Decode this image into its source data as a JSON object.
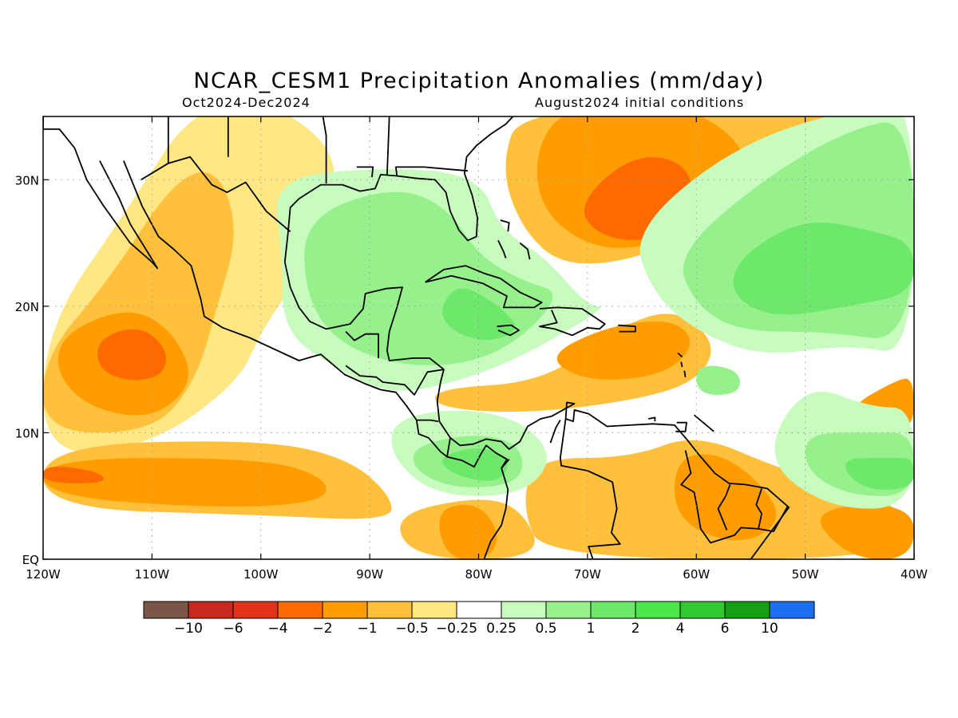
{
  "figure": {
    "title": "NCAR_CESM1 Precipitation Anomalies (mm/day)",
    "period": "Oct2024-Dec2024",
    "initial_conditions": "August2024 initial conditions"
  },
  "map": {
    "lon_range": [
      -120,
      -40
    ],
    "lat_range": [
      0,
      35
    ],
    "lon_ticks": [
      {
        "v": -120,
        "label": "120W"
      },
      {
        "v": -110,
        "label": "110W"
      },
      {
        "v": -100,
        "label": "100W"
      },
      {
        "v": -90,
        "label": "90W"
      },
      {
        "v": -80,
        "label": "80W"
      },
      {
        "v": -70,
        "label": "70W"
      },
      {
        "v": -60,
        "label": "60W"
      },
      {
        "v": -50,
        "label": "50W"
      },
      {
        "v": -40,
        "label": "40W"
      }
    ],
    "lat_ticks": [
      {
        "v": 0,
        "label": "EQ"
      },
      {
        "v": 10,
        "label": "10N"
      },
      {
        "v": 20,
        "label": "20N"
      },
      {
        "v": 30,
        "label": "30N"
      }
    ],
    "gridlines": "dotted"
  },
  "colorbar": {
    "colors": [
      "#7a5548",
      "#c8281e",
      "#e0331a",
      "#ff6a00",
      "#ff9d00",
      "#ffc03c",
      "#ffe784",
      "#ffffff",
      "#c8fcbe",
      "#96f08c",
      "#6ee86a",
      "#4ce64a",
      "#32c832",
      "#14a014",
      "#1e6ef0"
    ],
    "labels": [
      "-10",
      "-6",
      "-4",
      "-2",
      "-1",
      "-0.5",
      "-0.25",
      "0.25",
      "0.5",
      "1",
      "2",
      "4",
      "6",
      "10"
    ]
  },
  "anomaly_regions": [
    {
      "level": -0.25,
      "pts": [
        [
          -120,
          18
        ],
        [
          -112,
          28
        ],
        [
          -106,
          36
        ],
        [
          -98,
          36
        ],
        [
          -92,
          31
        ],
        [
          -96,
          23
        ],
        [
          -100,
          18
        ],
        [
          -102,
          14
        ],
        [
          -110,
          9
        ],
        [
          -120,
          8
        ]
      ]
    },
    {
      "level": -0.5,
      "pts": [
        [
          -120,
          16
        ],
        [
          -114,
          22
        ],
        [
          -108,
          30
        ],
        [
          -104,
          31
        ],
        [
          -102,
          26
        ],
        [
          -104,
          20
        ],
        [
          -106,
          14
        ],
        [
          -110,
          10
        ],
        [
          -120,
          10
        ]
      ]
    },
    {
      "level": -1,
      "pts": [
        [
          -118,
          18
        ],
        [
          -112,
          20
        ],
        [
          -108,
          18
        ],
        [
          -106,
          14
        ],
        [
          -110,
          11
        ],
        [
          -116,
          12
        ],
        [
          -119,
          15
        ]
      ]
    },
    {
      "level": -2,
      "pts": [
        [
          -115,
          17.5
        ],
        [
          -111,
          18.5
        ],
        [
          -108.5,
          16.5
        ],
        [
          -109,
          14.5
        ],
        [
          -112,
          14
        ],
        [
          -115,
          15
        ]
      ]
    },
    {
      "level": -0.5,
      "pts": [
        [
          -120,
          9
        ],
        [
          -100,
          9.5
        ],
        [
          -92,
          8
        ],
        [
          -88,
          5
        ],
        [
          -88,
          3
        ],
        [
          -100,
          3.5
        ],
        [
          -120,
          4
        ]
      ]
    },
    {
      "level": -1,
      "pts": [
        [
          -120,
          8
        ],
        [
          -100,
          8
        ],
        [
          -94,
          6.5
        ],
        [
          -94,
          4.5
        ],
        [
          -104,
          4
        ],
        [
          -120,
          5
        ]
      ]
    },
    {
      "level": -2,
      "pts": [
        [
          -120,
          7.5
        ],
        [
          -115,
          7
        ],
        [
          -114,
          6
        ],
        [
          -120,
          6
        ]
      ]
    },
    {
      "level": -0.5,
      "pts": [
        [
          -88,
          3.5
        ],
        [
          -80,
          5
        ],
        [
          -76,
          4
        ],
        [
          -74,
          0
        ],
        [
          -86,
          0
        ]
      ]
    },
    {
      "level": -1,
      "pts": [
        [
          -84,
          4
        ],
        [
          -80,
          4.5
        ],
        [
          -78,
          2
        ],
        [
          -79,
          0
        ],
        [
          -83,
          0
        ]
      ]
    },
    {
      "level": -0.5,
      "pts": [
        [
          -78,
          31
        ],
        [
          -76,
          36
        ],
        [
          -42,
          36
        ],
        [
          -48,
          32
        ],
        [
          -56,
          28
        ],
        [
          -64,
          24
        ],
        [
          -72,
          23
        ],
        [
          -76,
          26
        ]
      ]
    },
    {
      "level": -1,
      "pts": [
        [
          -75,
          32
        ],
        [
          -72,
          36
        ],
        [
          -60,
          36
        ],
        [
          -54,
          31
        ],
        [
          -60,
          26
        ],
        [
          -68,
          24
        ],
        [
          -74,
          27
        ]
      ]
    },
    {
      "level": -2,
      "pts": [
        [
          -71,
          28
        ],
        [
          -66,
          32
        ],
        [
          -61,
          31.5
        ],
        [
          -60,
          28
        ],
        [
          -64,
          25
        ],
        [
          -69,
          25.5
        ]
      ]
    },
    {
      "level": -0.5,
      "pts": [
        [
          -84,
          13.5
        ],
        [
          -74,
          14
        ],
        [
          -68,
          18
        ],
        [
          -62,
          20
        ],
        [
          -58,
          17
        ],
        [
          -60,
          14
        ],
        [
          -66,
          12.5
        ],
        [
          -76,
          11.5
        ],
        [
          -84,
          12
        ]
      ]
    },
    {
      "level": -1,
      "pts": [
        [
          -74,
          16
        ],
        [
          -68,
          18.5
        ],
        [
          -62,
          19
        ],
        [
          -60,
          17
        ],
        [
          -63,
          14.5
        ],
        [
          -70,
          14
        ]
      ]
    },
    {
      "level": -0.5,
      "pts": [
        [
          -75,
          8
        ],
        [
          -66,
          8
        ],
        [
          -60,
          10
        ],
        [
          -52,
          7
        ],
        [
          -40,
          4
        ],
        [
          -40,
          0
        ],
        [
          -74,
          0
        ],
        [
          -76,
          4
        ]
      ]
    },
    {
      "level": -1,
      "pts": [
        [
          -62,
          8
        ],
        [
          -58,
          8.5
        ],
        [
          -54,
          6
        ],
        [
          -52,
          3
        ],
        [
          -56,
          1
        ],
        [
          -62,
          3
        ]
      ]
    },
    {
      "level": -1,
      "pts": [
        [
          -50,
          4
        ],
        [
          -40,
          4.5
        ],
        [
          -40,
          0
        ],
        [
          -46,
          0
        ]
      ]
    },
    {
      "level": -1,
      "pts": [
        [
          -46,
          12
        ],
        [
          -42,
          14
        ],
        [
          -40,
          14.5
        ],
        [
          -40,
          10
        ],
        [
          -44,
          10.5
        ]
      ]
    },
    {
      "level": 0.25,
      "pts": [
        [
          -99,
          30
        ],
        [
          -90,
          31
        ],
        [
          -80,
          30.5
        ],
        [
          -78,
          26
        ],
        [
          -74,
          24
        ],
        [
          -70,
          20
        ],
        [
          -68,
          20
        ],
        [
          -76,
          16
        ],
        [
          -82,
          14
        ],
        [
          -88,
          13
        ],
        [
          -93,
          15
        ],
        [
          -98,
          18
        ],
        [
          -98,
          24
        ]
      ]
    },
    {
      "level": 0.5,
      "pts": [
        [
          -96,
          27
        ],
        [
          -88,
          29.5
        ],
        [
          -83,
          28
        ],
        [
          -80,
          24
        ],
        [
          -76,
          22
        ],
        [
          -72,
          21
        ],
        [
          -78,
          16
        ],
        [
          -86,
          15
        ],
        [
          -93,
          17
        ],
        [
          -96,
          21
        ]
      ]
    },
    {
      "level": 1,
      "pts": [
        [
          -82,
          22
        ],
        [
          -78,
          20
        ],
        [
          -76,
          18
        ],
        [
          -80,
          17
        ],
        [
          -84,
          19
        ]
      ]
    },
    {
      "level": 0.25,
      "pts": [
        [
          -88,
          11
        ],
        [
          -82,
          12
        ],
        [
          -76,
          11
        ],
        [
          -73,
          8
        ],
        [
          -76,
          5
        ],
        [
          -84,
          5
        ],
        [
          -88,
          8
        ]
      ]
    },
    {
      "level": 0.5,
      "pts": [
        [
          -86,
          9
        ],
        [
          -80,
          10
        ],
        [
          -76,
          9
        ],
        [
          -76,
          6
        ],
        [
          -82,
          5.5
        ],
        [
          -86,
          7
        ]
      ]
    },
    {
      "level": 1,
      "pts": [
        [
          -84,
          8
        ],
        [
          -80,
          9
        ],
        [
          -77,
          8
        ],
        [
          -78,
          6
        ],
        [
          -82,
          6.5
        ]
      ]
    },
    {
      "level": 0.25,
      "pts": [
        [
          -66,
          26
        ],
        [
          -56,
          33
        ],
        [
          -44,
          36
        ],
        [
          -40,
          36
        ],
        [
          -40,
          16
        ],
        [
          -46,
          17
        ],
        [
          -54,
          16
        ],
        [
          -60,
          18
        ],
        [
          -64,
          21
        ]
      ]
    },
    {
      "level": 0.5,
      "pts": [
        [
          -62,
          24
        ],
        [
          -54,
          30
        ],
        [
          -46,
          34
        ],
        [
          -40,
          35
        ],
        [
          -40,
          17
        ],
        [
          -48,
          18
        ],
        [
          -56,
          18
        ],
        [
          -60,
          20
        ]
      ]
    },
    {
      "level": 1,
      "pts": [
        [
          -56,
          24
        ],
        [
          -50,
          27
        ],
        [
          -44,
          26
        ],
        [
          -40,
          25
        ],
        [
          -40,
          21
        ],
        [
          -46,
          20
        ],
        [
          -53,
          19
        ],
        [
          -57,
          21
        ]
      ]
    },
    {
      "level": 0.5,
      "pts": [
        [
          -60,
          15.5
        ],
        [
          -56,
          15
        ],
        [
          -56,
          13
        ],
        [
          -60,
          13
        ]
      ]
    },
    {
      "level": 0.25,
      "pts": [
        [
          -50,
          14
        ],
        [
          -44,
          12
        ],
        [
          -40,
          12
        ],
        [
          -40,
          4
        ],
        [
          -48,
          4
        ],
        [
          -54,
          8
        ]
      ]
    },
    {
      "level": 0.5,
      "pts": [
        [
          -50,
          10
        ],
        [
          -44,
          10
        ],
        [
          -40,
          10
        ],
        [
          -40,
          5
        ],
        [
          -46,
          5
        ],
        [
          -50,
          7
        ]
      ]
    },
    {
      "level": 1,
      "pts": [
        [
          -47,
          8
        ],
        [
          -42,
          8
        ],
        [
          -40,
          8
        ],
        [
          -40,
          5.5
        ],
        [
          -45,
          5.5
        ]
      ]
    }
  ]
}
